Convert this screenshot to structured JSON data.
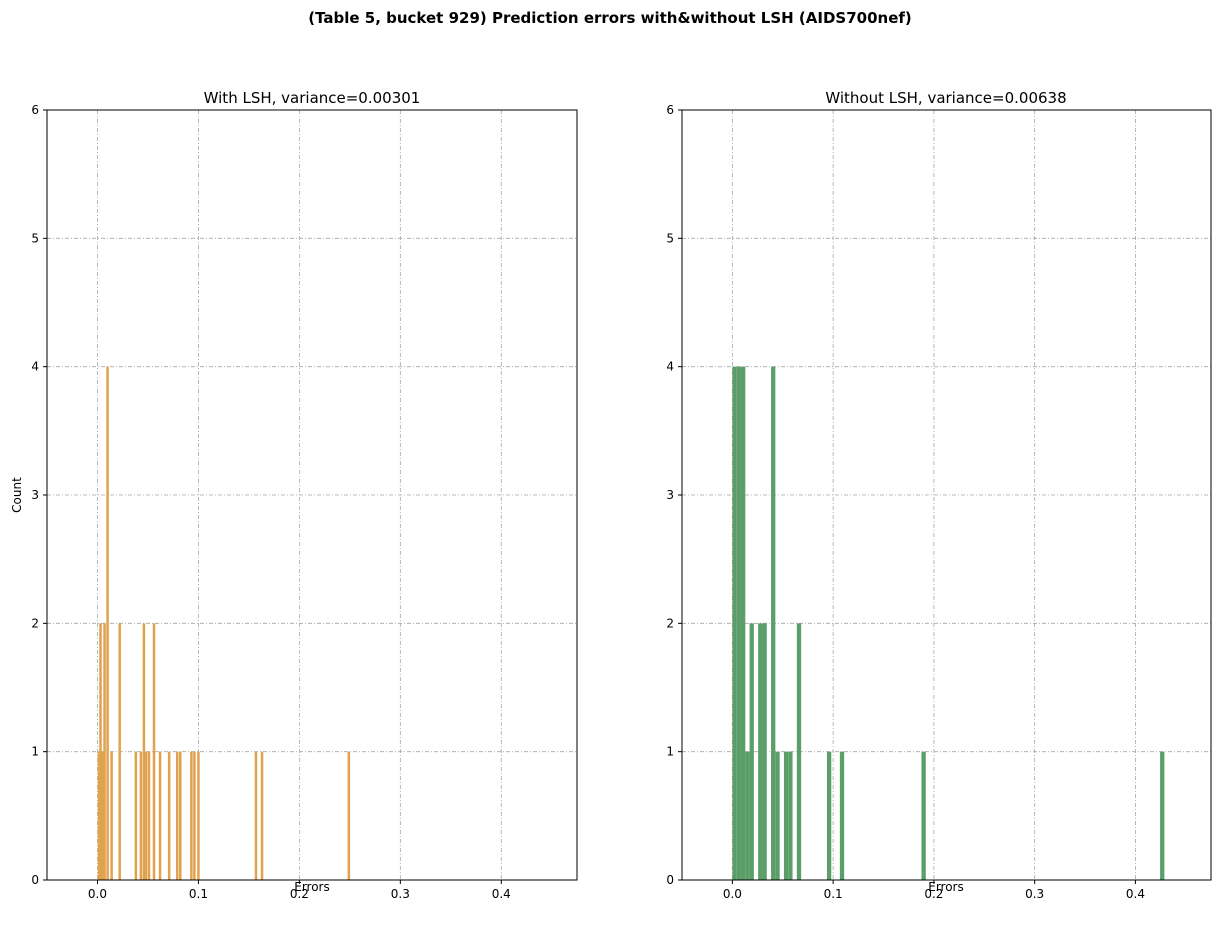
{
  "figure": {
    "suptitle": "(Table 5, bucket 929) Prediction errors with&without LSH (AIDS700nef)"
  },
  "chart_data": [
    {
      "type": "bar",
      "title": "With LSH, variance=0.00301",
      "xlabel": "Errors",
      "ylabel": "Count",
      "xlim": [
        -0.05,
        0.475
      ],
      "ylim": [
        0,
        6
      ],
      "xticks": [
        "0.0",
        "0.1",
        "0.2",
        "0.3",
        "0.4"
      ],
      "yticks": [
        "0",
        "1",
        "2",
        "3",
        "4",
        "5",
        "6"
      ],
      "grid": true,
      "color": "#e1a24e",
      "bar_width": 0.0025,
      "bars": [
        {
          "x": 0.0015,
          "count": 1
        },
        {
          "x": 0.003,
          "count": 2
        },
        {
          "x": 0.005,
          "count": 1
        },
        {
          "x": 0.007,
          "count": 2
        },
        {
          "x": 0.01,
          "count": 4
        },
        {
          "x": 0.014,
          "count": 1
        },
        {
          "x": 0.022,
          "count": 2
        },
        {
          "x": 0.038,
          "count": 1
        },
        {
          "x": 0.043,
          "count": 1
        },
        {
          "x": 0.046,
          "count": 2
        },
        {
          "x": 0.048,
          "count": 1
        },
        {
          "x": 0.051,
          "count": 1
        },
        {
          "x": 0.056,
          "count": 2
        },
        {
          "x": 0.062,
          "count": 1
        },
        {
          "x": 0.071,
          "count": 1
        },
        {
          "x": 0.079,
          "count": 1
        },
        {
          "x": 0.082,
          "count": 1
        },
        {
          "x": 0.093,
          "count": 1
        },
        {
          "x": 0.096,
          "count": 1
        },
        {
          "x": 0.1,
          "count": 1
        },
        {
          "x": 0.157,
          "count": 1
        },
        {
          "x": 0.163,
          "count": 1
        },
        {
          "x": 0.249,
          "count": 1
        }
      ]
    },
    {
      "type": "bar",
      "title": "Without LSH, variance=0.00638",
      "xlabel": "Errors",
      "ylabel": "",
      "xlim": [
        -0.05,
        0.475
      ],
      "ylim": [
        0,
        6
      ],
      "xticks": [
        "0.0",
        "0.1",
        "0.2",
        "0.3",
        "0.4"
      ],
      "yticks": [
        "0",
        "1",
        "2",
        "3",
        "4",
        "5",
        "6"
      ],
      "grid": true,
      "color": "#5b9e69",
      "bar_width": 0.00427,
      "bars": [
        {
          "x": 0.0021,
          "count": 4
        },
        {
          "x": 0.0064,
          "count": 4
        },
        {
          "x": 0.0107,
          "count": 4
        },
        {
          "x": 0.0149,
          "count": 1
        },
        {
          "x": 0.0192,
          "count": 2
        },
        {
          "x": 0.0277,
          "count": 2
        },
        {
          "x": 0.032,
          "count": 2
        },
        {
          "x": 0.0405,
          "count": 4
        },
        {
          "x": 0.0448,
          "count": 1
        },
        {
          "x": 0.0533,
          "count": 1
        },
        {
          "x": 0.0576,
          "count": 1
        },
        {
          "x": 0.0661,
          "count": 2
        },
        {
          "x": 0.096,
          "count": 1
        },
        {
          "x": 0.1088,
          "count": 1
        },
        {
          "x": 0.1898,
          "count": 1
        },
        {
          "x": 0.4266,
          "count": 1
        }
      ]
    }
  ]
}
